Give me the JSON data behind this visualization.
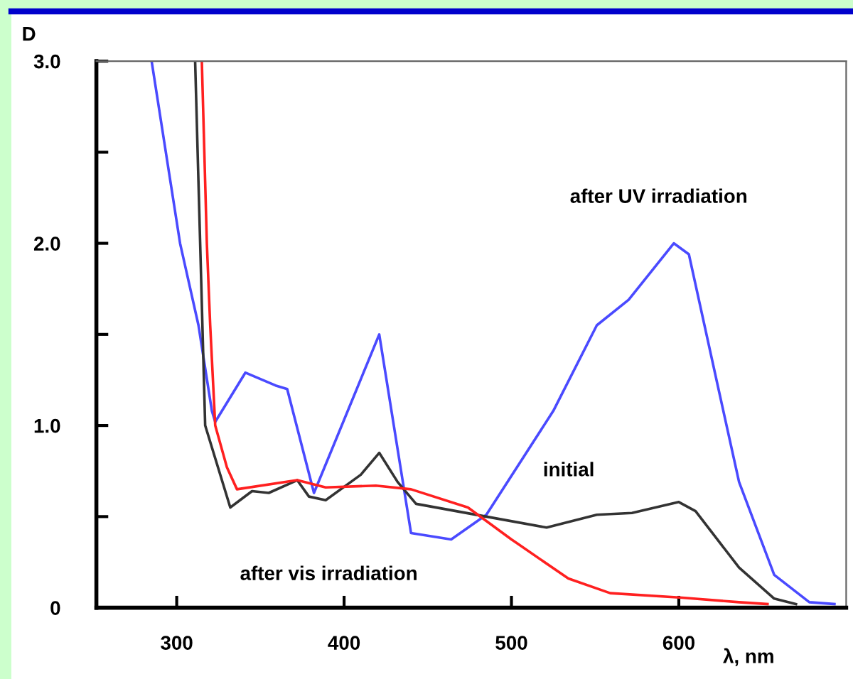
{
  "chart_data": {
    "type": "line",
    "xlabel": "λ, nm",
    "ylabel": "D",
    "xlim": [
      252,
      700
    ],
    "ylim": [
      0,
      3.0
    ],
    "xticks": [
      300,
      400,
      500,
      600
    ],
    "yticks": [
      0,
      {
        "value": 0.5,
        "label": null
      },
      {
        "value": 1.0,
        "label": "1.0"
      },
      {
        "value": 1.5,
        "label": null
      },
      {
        "value": 2.0,
        "label": "2.0"
      },
      {
        "value": 2.5,
        "label": null
      },
      {
        "value": 3.0,
        "label": "3.0"
      }
    ],
    "grid": false,
    "marker": "none",
    "line_style": "solid",
    "series": [
      {
        "color": "#4a4aff",
        "x": [
          285,
          302,
          313,
          321,
          323,
          341,
          359,
          366,
          382,
          421,
          440,
          464,
          485,
          525,
          551,
          570,
          597,
          606,
          623,
          636,
          657,
          678,
          693
        ],
        "values": [
          3.0,
          2.0,
          1.55,
          1.08,
          1.02,
          1.29,
          1.22,
          1.2,
          0.63,
          1.5,
          0.41,
          0.375,
          0.51,
          1.08,
          1.55,
          1.69,
          2.0,
          1.94,
          1.23,
          0.69,
          0.18,
          0.03,
          0.02
        ]
      },
      {
        "color": "#333333",
        "x": [
          311,
          314,
          317,
          332,
          345,
          355,
          372,
          379,
          389,
          410,
          421,
          432,
          443,
          485,
          521,
          551,
          572,
          600,
          610,
          636,
          657,
          670
        ],
        "values": [
          3.0,
          2.0,
          1.0,
          0.55,
          0.64,
          0.63,
          0.7,
          0.61,
          0.59,
          0.73,
          0.85,
          0.69,
          0.57,
          0.5,
          0.44,
          0.51,
          0.52,
          0.58,
          0.53,
          0.22,
          0.05,
          0.02
        ]
      },
      {
        "color": "#ff2020",
        "x": [
          315,
          318,
          320,
          323,
          330,
          336,
          372,
          389,
          419,
          440,
          474,
          500,
          534,
          559,
          602,
          636,
          653
        ],
        "values": [
          3.0,
          2.0,
          1.55,
          1.0,
          0.77,
          0.65,
          0.7,
          0.66,
          0.67,
          0.65,
          0.55,
          0.375,
          0.16,
          0.08,
          0.055,
          0.03,
          0.02
        ]
      }
    ],
    "annotations": [
      "after UV irradiation",
      "initial",
      "after vis irradiation"
    ]
  }
}
